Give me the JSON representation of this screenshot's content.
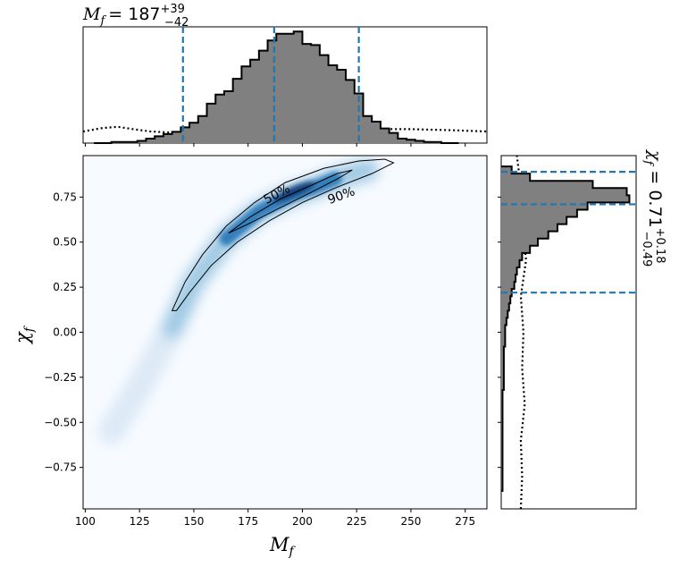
{
  "chart_data": [
    {
      "type": "heatmap",
      "panel": "joint",
      "xlabel_main": "M",
      "xlabel_sub": "f",
      "ylabel_main": "χ",
      "ylabel_sub": "f",
      "xlim": [
        99,
        285
      ],
      "ylim": [
        -0.98,
        0.98
      ],
      "xticks": [
        100,
        125,
        150,
        175,
        200,
        225,
        250,
        275
      ],
      "yticks": [
        -0.75,
        -0.5,
        -0.25,
        0.0,
        0.25,
        0.5,
        0.75
      ],
      "ytick_labels": [
        "−0.75",
        "−0.50",
        "−0.25",
        "0.00",
        "0.25",
        "0.50",
        "0.75"
      ],
      "colormap": [
        "#f7fbff",
        "#c6dbef",
        "#6baed6",
        "#2171b5",
        "#08306b"
      ],
      "density_ridge": [
        {
          "x": 112,
          "y": -0.55
        },
        {
          "x": 125,
          "y": -0.3
        },
        {
          "x": 140,
          "y": 0.02
        },
        {
          "x": 150,
          "y": 0.28
        },
        {
          "x": 165,
          "y": 0.52
        },
        {
          "x": 180,
          "y": 0.67
        },
        {
          "x": 195,
          "y": 0.76
        },
        {
          "x": 205,
          "y": 0.8
        },
        {
          "x": 215,
          "y": 0.85
        },
        {
          "x": 230,
          "y": 0.9
        }
      ],
      "density_peak": {
        "x": 196,
        "y": 0.78
      },
      "contours": [
        {
          "label": "50%",
          "points": [
            {
              "x": 166,
              "y": 0.55
            },
            {
              "x": 176,
              "y": 0.64
            },
            {
              "x": 190,
              "y": 0.74
            },
            {
              "x": 205,
              "y": 0.82
            },
            {
              "x": 216,
              "y": 0.88
            },
            {
              "x": 223,
              "y": 0.9
            },
            {
              "x": 216,
              "y": 0.85
            },
            {
              "x": 203,
              "y": 0.77
            },
            {
              "x": 188,
              "y": 0.68
            },
            {
              "x": 175,
              "y": 0.6
            },
            {
              "x": 166,
              "y": 0.55
            }
          ]
        },
        {
          "label": "90%",
          "points": [
            {
              "x": 140,
              "y": 0.12
            },
            {
              "x": 146,
              "y": 0.28
            },
            {
              "x": 154,
              "y": 0.43
            },
            {
              "x": 165,
              "y": 0.59
            },
            {
              "x": 178,
              "y": 0.72
            },
            {
              "x": 192,
              "y": 0.83
            },
            {
              "x": 210,
              "y": 0.91
            },
            {
              "x": 226,
              "y": 0.95
            },
            {
              "x": 238,
              "y": 0.96
            },
            {
              "x": 242,
              "y": 0.94
            },
            {
              "x": 232,
              "y": 0.88
            },
            {
              "x": 215,
              "y": 0.8
            },
            {
              "x": 200,
              "y": 0.72
            },
            {
              "x": 185,
              "y": 0.62
            },
            {
              "x": 170,
              "y": 0.5
            },
            {
              "x": 158,
              "y": 0.37
            },
            {
              "x": 148,
              "y": 0.22
            },
            {
              "x": 142,
              "y": 0.12
            },
            {
              "x": 140,
              "y": 0.12
            }
          ]
        }
      ]
    },
    {
      "type": "bar",
      "panel": "marginal-top",
      "title_main": "M",
      "title_sub": "f",
      "title_value": "= 187",
      "title_sup": "+39",
      "title_inf": "−42",
      "xlim": [
        99,
        285
      ],
      "bin_edges": [
        104,
        108,
        112,
        116,
        120,
        124,
        128,
        132,
        136,
        140,
        144,
        148,
        152,
        156,
        160,
        164,
        168,
        172,
        176,
        180,
        184,
        188,
        192,
        196,
        200,
        204,
        208,
        212,
        216,
        220,
        224,
        228,
        232,
        236,
        240,
        244,
        248,
        252,
        256,
        260,
        264,
        268,
        272
      ],
      "posterior": [
        0.0,
        0.0,
        0.01,
        0.01,
        0.01,
        0.02,
        0.04,
        0.06,
        0.08,
        0.1,
        0.14,
        0.18,
        0.24,
        0.35,
        0.43,
        0.46,
        0.57,
        0.68,
        0.74,
        0.82,
        0.91,
        0.97,
        0.97,
        0.99,
        0.88,
        0.87,
        0.78,
        0.69,
        0.65,
        0.56,
        0.44,
        0.24,
        0.19,
        0.13,
        0.09,
        0.04,
        0.03,
        0.02,
        0.01,
        0.01,
        0.0,
        0.0
      ],
      "prior_x": [
        99,
        108,
        115,
        122,
        130,
        140,
        155,
        175,
        200,
        225,
        250,
        270,
        285
      ],
      "prior_y": [
        0.1,
        0.13,
        0.14,
        0.12,
        0.1,
        0.09,
        0.1,
        0.11,
        0.11,
        0.12,
        0.12,
        0.11,
        0.1
      ],
      "quantile_lines": [
        145,
        187,
        226
      ],
      "quantile_color": "#1f77b4"
    },
    {
      "type": "bar",
      "panel": "marginal-right",
      "title_main": "χ",
      "title_sub": "f",
      "title_value": " = 0.71",
      "title_sup": "+0.18",
      "title_inf": "−0.49",
      "ylim": [
        -0.98,
        0.98
      ],
      "bin_edges": [
        -0.88,
        -0.84,
        -0.8,
        -0.76,
        -0.72,
        -0.68,
        -0.64,
        -0.6,
        -0.56,
        -0.52,
        -0.48,
        -0.44,
        -0.4,
        -0.36,
        -0.32,
        -0.28,
        -0.24,
        -0.2,
        -0.16,
        -0.12,
        -0.08,
        -0.04,
        0.0,
        0.04,
        0.08,
        0.12,
        0.16,
        0.2,
        0.24,
        0.28,
        0.32,
        0.36,
        0.4,
        0.44,
        0.48,
        0.52,
        0.56,
        0.6,
        0.64,
        0.68,
        0.72,
        0.76,
        0.8,
        0.84,
        0.88,
        0.92
      ],
      "posterior": [
        0.01,
        0.01,
        0.01,
        0.01,
        0.01,
        0.01,
        0.01,
        0.01,
        0.01,
        0.01,
        0.01,
        0.01,
        0.01,
        0.01,
        0.02,
        0.02,
        0.02,
        0.02,
        0.02,
        0.02,
        0.03,
        0.03,
        0.03,
        0.04,
        0.05,
        0.06,
        0.07,
        0.08,
        0.1,
        0.11,
        0.12,
        0.14,
        0.16,
        0.22,
        0.28,
        0.36,
        0.43,
        0.5,
        0.58,
        0.66,
        0.98,
        0.96,
        0.7,
        0.22,
        0.08
      ],
      "prior_y": [
        -0.98,
        -0.8,
        -0.6,
        -0.4,
        -0.2,
        0.0,
        0.2,
        0.4,
        0.6,
        0.8,
        0.98
      ],
      "prior_x": [
        0.15,
        0.16,
        0.15,
        0.18,
        0.16,
        0.17,
        0.15,
        0.19,
        0.16,
        0.15,
        0.12
      ],
      "quantile_lines": [
        0.22,
        0.71,
        0.89
      ],
      "quantile_color": "#1f77b4"
    }
  ]
}
